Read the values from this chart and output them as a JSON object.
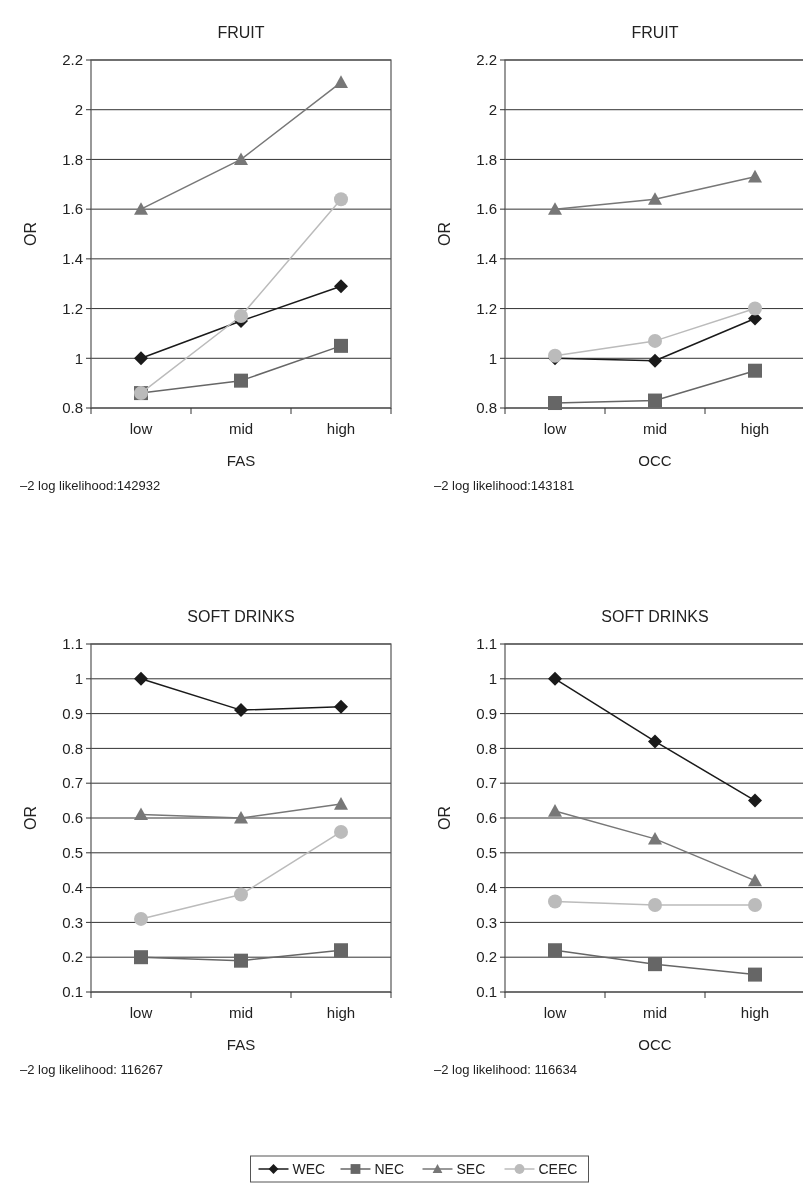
{
  "chart_data": [
    {
      "type": "line",
      "title": "FRUIT",
      "xlabel": "FAS",
      "ylabel": "OR",
      "categories": [
        "low",
        "mid",
        "high"
      ],
      "ylim": [
        0.8,
        2.2
      ],
      "yticks": [
        0.8,
        1,
        1.2,
        1.4,
        1.6,
        1.8,
        2,
        2.2
      ],
      "grid": "y",
      "legend": "bottom",
      "annotations": [
        "–2 log likelihood:142932"
      ],
      "series": [
        {
          "name": "WEC",
          "color": "#1a1a1a",
          "marker": "diamond",
          "values": [
            1.0,
            1.15,
            1.29
          ]
        },
        {
          "name": "NEC",
          "color": "#666666",
          "marker": "square",
          "values": [
            0.86,
            0.91,
            1.05
          ]
        },
        {
          "name": "SEC",
          "color": "#777777",
          "marker": "triangle",
          "values": [
            1.6,
            1.8,
            2.11
          ]
        },
        {
          "name": "CEEC",
          "color": "#bbbbbb",
          "marker": "circle",
          "values": [
            0.86,
            1.17,
            1.64
          ]
        }
      ]
    },
    {
      "type": "line",
      "title": "FRUIT",
      "xlabel": "OCC",
      "ylabel": "OR",
      "categories": [
        "low",
        "mid",
        "high"
      ],
      "ylim": [
        0.8,
        2.2
      ],
      "yticks": [
        0.8,
        1,
        1.2,
        1.4,
        1.6,
        1.8,
        2,
        2.2
      ],
      "grid": "y",
      "annotations": [
        "–2 log likelihood:143181"
      ],
      "series": [
        {
          "color": "#1a1a1a",
          "marker": "diamond",
          "values": [
            1.0,
            0.99,
            1.16
          ]
        },
        {
          "color": "#666666",
          "marker": "square",
          "values": [
            0.82,
            0.83,
            0.95
          ]
        },
        {
          "color": "#777777",
          "marker": "triangle",
          "values": [
            1.6,
            1.64,
            1.73
          ]
        },
        {
          "color": "#bbbbbb",
          "marker": "circle",
          "values": [
            1.01,
            1.07,
            1.2
          ]
        }
      ]
    },
    {
      "type": "line",
      "title": "SOFT DRINKS",
      "xlabel": "FAS",
      "ylabel": "OR",
      "categories": [
        "low",
        "mid",
        "high"
      ],
      "ylim": [
        0.1,
        1.1
      ],
      "yticks": [
        0.1,
        0.2,
        0.3,
        0.4,
        0.5,
        0.6,
        0.7,
        0.8,
        0.9,
        1,
        1.1
      ],
      "grid": "y",
      "annotations": [
        "–2 log likelihood: 116267"
      ],
      "series": [
        {
          "color": "#1a1a1a",
          "marker": "diamond",
          "values": [
            1.0,
            0.91,
            0.92
          ]
        },
        {
          "color": "#666666",
          "marker": "square",
          "values": [
            0.2,
            0.19,
            0.22
          ]
        },
        {
          "color": "#777777",
          "marker": "triangle",
          "values": [
            0.61,
            0.6,
            0.64
          ]
        },
        {
          "color": "#bbbbbb",
          "marker": "circle",
          "values": [
            0.31,
            0.38,
            0.56
          ]
        }
      ]
    },
    {
      "type": "line",
      "title": "SOFT DRINKS",
      "xlabel": "OCC",
      "ylabel": "OR",
      "categories": [
        "low",
        "mid",
        "high"
      ],
      "ylim": [
        0.1,
        1.1
      ],
      "yticks": [
        0.1,
        0.2,
        0.3,
        0.4,
        0.5,
        0.6,
        0.7,
        0.8,
        0.9,
        1,
        1.1
      ],
      "grid": "y",
      "annotations": [
        "–2 log likelihood: 116634"
      ],
      "series": [
        {
          "color": "#1a1a1a",
          "marker": "diamond",
          "values": [
            1.0,
            0.82,
            0.65
          ]
        },
        {
          "color": "#666666",
          "marker": "square",
          "values": [
            0.22,
            0.18,
            0.15
          ]
        },
        {
          "color": "#777777",
          "marker": "triangle",
          "values": [
            0.62,
            0.54,
            0.42
          ]
        },
        {
          "color": "#bbbbbb",
          "marker": "circle",
          "values": [
            0.36,
            0.35,
            0.35
          ]
        }
      ]
    }
  ]
}
